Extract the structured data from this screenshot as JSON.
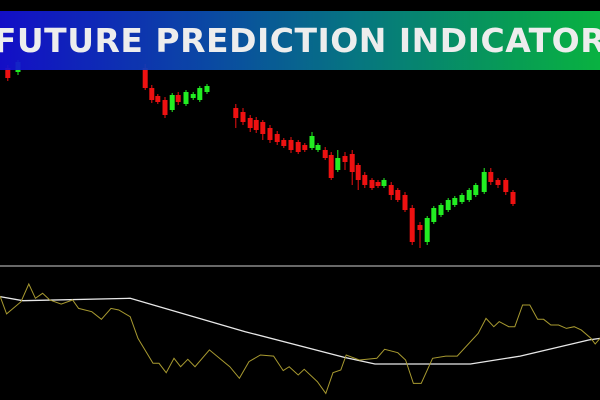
{
  "banner": {
    "title": "FUTURE PREDICTION INDICATOR",
    "gradient_start": "#1510d6",
    "gradient_end": "#0ac046"
  },
  "colors": {
    "background": "#000000",
    "bull": "#22ee22",
    "bear": "#ee1111",
    "signal_line": "#e8e8e8",
    "oscillator_line": "#a89a30",
    "separator": "#8a8a8a"
  },
  "chart_data": [
    {
      "type": "candlestick",
      "title": "",
      "grid": false,
      "candles_columns": [
        "bar",
        "open",
        "close",
        "high",
        "low"
      ],
      "candles": [
        [
          1.3,
          232,
          222,
          235,
          219
        ],
        [
          3,
          228,
          238,
          240,
          225
        ],
        [
          24.2,
          232,
          212,
          236,
          210
        ],
        [
          25.3,
          212,
          200,
          215,
          197
        ],
        [
          26.3,
          204,
          198,
          206,
          196
        ],
        [
          27.5,
          200,
          185,
          203,
          182
        ],
        [
          28.7,
          190,
          205,
          207,
          188
        ],
        [
          29.7,
          205,
          198,
          208,
          195
        ],
        [
          31,
          196,
          208,
          210,
          194
        ],
        [
          32.2,
          202,
          206,
          208,
          200
        ],
        [
          33.3,
          200,
          212,
          214,
          198
        ],
        [
          34.5,
          208,
          214,
          216,
          206
        ],
        [
          39.3,
          192,
          182,
          196,
          172
        ],
        [
          40.5,
          188,
          178,
          192,
          175
        ],
        [
          41.7,
          182,
          172,
          185,
          168
        ],
        [
          42.7,
          180,
          170,
          183,
          167
        ],
        [
          43.8,
          178,
          166,
          180,
          160
        ],
        [
          45,
          172,
          160,
          175,
          157
        ],
        [
          46.2,
          166,
          158,
          169,
          155
        ],
        [
          47.3,
          160,
          154,
          162,
          152
        ],
        [
          48.5,
          160,
          150,
          163,
          147
        ],
        [
          49.7,
          158,
          148,
          160,
          146
        ],
        [
          50.8,
          155,
          150,
          157,
          148
        ],
        [
          52,
          152,
          164,
          168,
          150
        ],
        [
          53,
          150,
          155,
          157,
          148
        ],
        [
          54.2,
          150,
          142,
          153,
          140
        ],
        [
          55.2,
          145,
          122,
          148,
          120
        ],
        [
          56.3,
          130,
          142,
          150,
          128
        ],
        [
          57.5,
          144,
          138,
          148,
          130
        ],
        [
          58.7,
          146,
          128,
          150,
          115
        ],
        [
          59.7,
          135,
          120,
          137,
          110
        ],
        [
          60.8,
          125,
          115,
          128,
          112
        ],
        [
          62,
          120,
          112,
          122,
          110
        ],
        [
          63,
          118,
          114,
          120,
          112
        ],
        [
          64,
          114,
          120,
          122,
          112
        ],
        [
          65.2,
          115,
          105,
          118,
          100
        ],
        [
          66.3,
          110,
          100,
          112,
          98
        ],
        [
          67.5,
          105,
          90,
          108,
          88
        ],
        [
          68.7,
          92,
          58,
          95,
          55
        ],
        [
          70,
          75,
          70,
          78,
          52
        ],
        [
          71.2,
          58,
          82,
          84,
          55
        ],
        [
          72.3,
          78,
          92,
          94,
          76
        ],
        [
          73.5,
          85,
          95,
          97,
          83
        ],
        [
          74.7,
          90,
          100,
          102,
          88
        ],
        [
          75.8,
          95,
          102,
          104,
          93
        ],
        [
          77,
          98,
          105,
          107,
          96
        ],
        [
          78.2,
          100,
          110,
          112,
          98
        ],
        [
          79.3,
          105,
          115,
          117,
          103
        ],
        [
          80.7,
          108,
          128,
          132,
          106
        ],
        [
          81.8,
          128,
          118,
          132,
          115
        ],
        [
          83,
          120,
          115,
          122,
          112
        ],
        [
          84.3,
          120,
          108,
          122,
          105
        ],
        [
          85.5,
          108,
          96,
          110,
          94
        ]
      ]
    },
    {
      "type": "line",
      "title": "",
      "grid": false,
      "ylim": [
        0,
        100
      ],
      "series": [
        {
          "color": "#e8e8e8",
          "points": [
            [
              0,
              79.5
            ],
            [
              3.8,
              76.4
            ],
            [
              21.7,
              78.2
            ],
            [
              40.8,
              52.6
            ],
            [
              57.4,
              32.8
            ],
            [
              62.5,
              27.7
            ],
            [
              78.4,
              27.7
            ],
            [
              86.7,
              33.8
            ],
            [
              98.2,
              46.2
            ],
            [
              100,
              47.4
            ]
          ]
        },
        {
          "color": "#a89a30",
          "points": [
            [
              0,
              80
            ],
            [
              1.1,
              66.2
            ],
            [
              3.5,
              75.6
            ],
            [
              4.8,
              89.2
            ],
            [
              5.9,
              78.2
            ],
            [
              7.1,
              82.1
            ],
            [
              8.3,
              76.9
            ],
            [
              10.2,
              73.8
            ],
            [
              12.1,
              76.9
            ],
            [
              13.1,
              70.5
            ],
            [
              15.3,
              67.9
            ],
            [
              16.9,
              62.1
            ],
            [
              18.5,
              70.5
            ],
            [
              19.8,
              69.2
            ],
            [
              21.7,
              64.1
            ],
            [
              23,
              47.4
            ],
            [
              25.5,
              28.2
            ],
            [
              26.5,
              28.2
            ],
            [
              27.7,
              21
            ],
            [
              29,
              32.1
            ],
            [
              30.1,
              25.6
            ],
            [
              31.3,
              31.3
            ],
            [
              32.5,
              25.6
            ],
            [
              34.9,
              38.5
            ],
            [
              38.3,
              25.6
            ],
            [
              39.9,
              16.7
            ],
            [
              41.5,
              29.5
            ],
            [
              43.4,
              34.6
            ],
            [
              45.6,
              33.8
            ],
            [
              47.2,
              22.6
            ],
            [
              48.2,
              25.6
            ],
            [
              49.7,
              19.2
            ],
            [
              50.7,
              23.6
            ],
            [
              52.9,
              14.1
            ],
            [
              54.3,
              5.1
            ],
            [
              55.5,
              21
            ],
            [
              56.8,
              23.1
            ],
            [
              57.7,
              34.6
            ],
            [
              59.9,
              30.8
            ],
            [
              62.8,
              32.1
            ],
            [
              64.1,
              39
            ],
            [
              66.3,
              36.4
            ],
            [
              67.6,
              30.8
            ],
            [
              68.9,
              12.8
            ],
            [
              70.2,
              12.8
            ],
            [
              72.1,
              32.1
            ],
            [
              74.3,
              33.8
            ],
            [
              76.2,
              33.8
            ],
            [
              79.7,
              51.3
            ],
            [
              81,
              62.8
            ],
            [
              82.3,
              56.4
            ],
            [
              83.2,
              60.3
            ],
            [
              84.8,
              56.4
            ],
            [
              85.8,
              56.4
            ],
            [
              87.1,
              73.1
            ],
            [
              88.3,
              73.1
            ],
            [
              89.6,
              62.1
            ],
            [
              90.6,
              62.1
            ],
            [
              91.8,
              57.7
            ],
            [
              93.1,
              57.7
            ],
            [
              94.4,
              55.1
            ],
            [
              95.7,
              56.4
            ],
            [
              96.9,
              53.8
            ],
            [
              98.5,
              47.4
            ],
            [
              99.2,
              43.1
            ],
            [
              100,
              47.4
            ]
          ]
        }
      ]
    }
  ]
}
